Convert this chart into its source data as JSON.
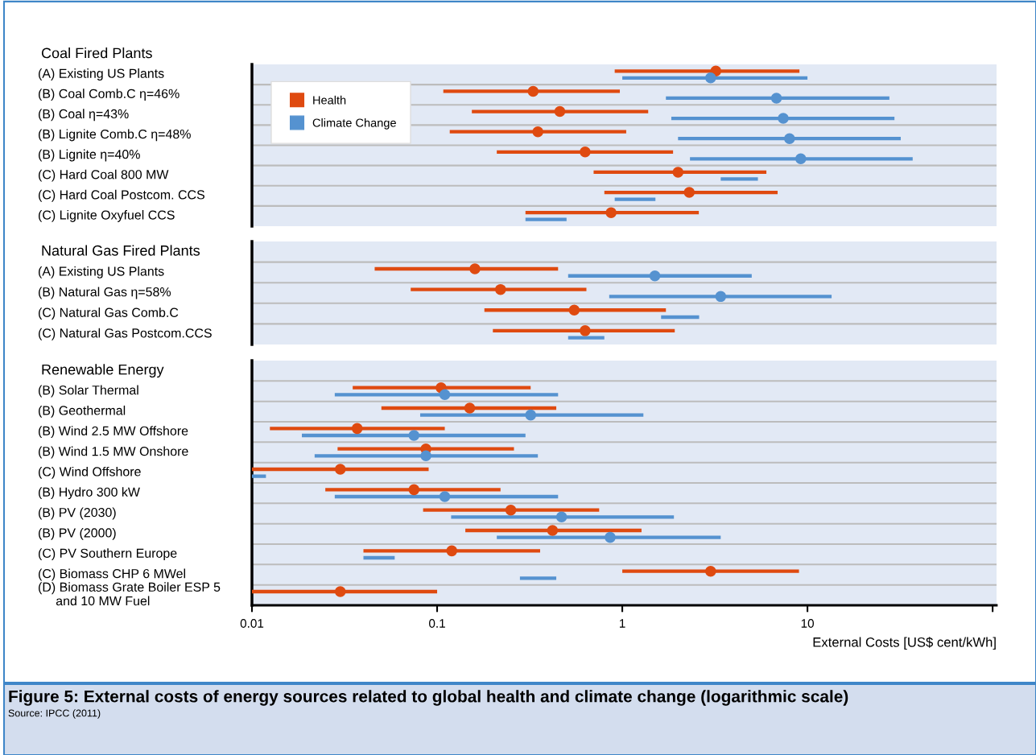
{
  "chart_data": [
    {
      "type": "bar",
      "orientation": "horizontal",
      "title": "Coal Fired Plants",
      "log": "x",
      "grid": "y",
      "legend": "top left",
      "marker": "circle",
      "tick_labels": "y",
      "categories": [
        "(A) Existing US Plants",
        "(B) Coal Comb.C η=46%",
        "(B) Coal η=43%",
        "(B) Lignite Comb.C η=48%",
        "(B) Lignite η=40%",
        "(C) Hard Coal 800 MW",
        "(C) Hard Coal Postcom. CCS",
        "(C) Lignite Oxyfuel CCS"
      ],
      "xlim": [
        0.01,
        105
      ],
      "series": [
        {
          "name": "Health",
          "color": "#df4a10",
          "base": [
            0.91,
            0.108,
            0.154,
            0.117,
            0.21,
            0.7,
            0.8,
            0.3
          ],
          "values": [
            8.14,
            0.862,
            1.226,
            0.933,
            1.67,
            5.3,
            6.1,
            2.29
          ]
        },
        {
          "name": "Climate Change",
          "color": "#5592d0",
          "base": [
            1.0,
            1.72,
            1.84,
            2.0,
            2.32,
            3.4,
            0.91,
            0.3
          ],
          "values": [
            9.0,
            25.98,
            27.66,
            29.9,
            34.68,
            2.0,
            0.6,
            0.2
          ]
        },
        {
          "type": "scatter",
          "color": "#df4a10",
          "values": [
            3.2,
            0.33,
            0.46,
            0.35,
            0.63,
            2.0,
            2.3,
            0.87
          ]
        },
        {
          "type": "scatter",
          "color": "#5592d0",
          "values": [
            3.0,
            6.8,
            7.4,
            8.0,
            9.2,
            null,
            null,
            null
          ]
        }
      ]
    },
    {
      "type": "bar",
      "orientation": "horizontal",
      "title": "Natural Gas Fired Plants",
      "log": "x",
      "grid": "y",
      "marker": "circle",
      "tick_labels": "y",
      "categories": [
        null,
        "(A) Existing US Plants",
        "(B) Natural Gas η=58%",
        "(C) Natural Gas Comb.C",
        "(C) Natural Gas Postcom.CCS"
      ],
      "xlim": [
        0.01,
        105
      ],
      "series": [
        {
          "color": "#df4a10",
          "base": [
            null,
            0.046,
            0.072,
            0.18,
            0.2
          ],
          "values": [
            null,
            0.404,
            0.568,
            1.54,
            1.72
          ]
        },
        {
          "color": "#5592d0",
          "base": [
            null,
            0.51,
            0.85,
            1.62,
            0.51
          ],
          "values": [
            null,
            4.49,
            12.65,
            0.98,
            0.29
          ]
        },
        {
          "type": "scatter",
          "color": "#df4a10",
          "values": [
            null,
            0.16,
            0.22,
            0.55,
            0.63
          ]
        },
        {
          "type": "scatter",
          "color": "#5592d0",
          "values": [
            null,
            1.5,
            3.4,
            null,
            null
          ]
        }
      ]
    },
    {
      "type": "bar",
      "orientation": "horizontal",
      "title": "Renewable Energy",
      "log": "x",
      "grid": "y",
      "marker": "circle",
      "xlabel": "External Costs [US$ cent/kWh]",
      "categories": [
        null,
        "(B) Solar Thermal",
        "(B) Geothermal",
        "(B) Wind 2.5 MW Offshore",
        "(B) Wind 1.5 MW Onshore",
        "(C) Wind Offshore",
        "(B) Hydro 300 kW",
        "(B) PV (2030)",
        "(B) PV (2000)",
        "(C) PV Southern Europe",
        "(C) Biomass CHP 6 MWel",
        "(D) Biomass Grate Boiler ESP 5\n     and 10 MW Fuel"
      ],
      "xlim": [
        0.01,
        105
      ],
      "xticks": [
        0.01,
        0.1,
        1,
        10,
        {
          "value": 100,
          "label": null
        }
      ],
      "series": [
        {
          "color": "#df4a10",
          "base": [
            null,
            0.035,
            0.05,
            0.0125,
            0.029,
            0.01,
            0.0249,
            0.084,
            0.142,
            0.04,
            1.0,
            0.01
          ],
          "values": [
            null,
            0.285,
            0.39,
            0.0975,
            0.231,
            0.08,
            0.1951,
            0.666,
            1.128,
            0.32,
            8.0,
            0.09
          ]
        },
        {
          "color": "#5592d0",
          "base": [
            null,
            0.028,
            0.081,
            0.0186,
            0.0218,
            0.01,
            0.028,
            0.119,
            0.21,
            0.04,
            0.28,
            null
          ],
          "values": [
            null,
            0.422,
            1.219,
            0.2814,
            0.3282,
            0.0019,
            0.422,
            1.781,
            3.19,
            0.019,
            0.16,
            null
          ]
        },
        {
          "type": "scatter",
          "color": "#df4a10",
          "values": [
            null,
            0.105,
            0.15,
            0.037,
            0.087,
            0.03,
            0.075,
            0.25,
            0.42,
            0.12,
            3.0,
            0.03
          ]
        },
        {
          "type": "scatter",
          "color": "#5592d0",
          "values": [
            null,
            0.11,
            0.32,
            0.075,
            0.087,
            null,
            0.11,
            0.47,
            0.86,
            null,
            null,
            null
          ]
        }
      ],
      "annotations": [
        "Figure 5: External costs of energy sources related to global health and climate change (logarithmic scale)",
        "Source: IPCC (2011)"
      ]
    }
  ]
}
